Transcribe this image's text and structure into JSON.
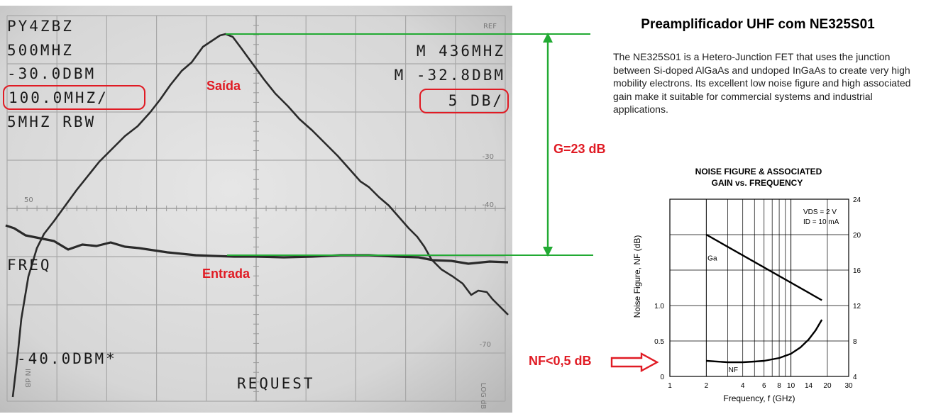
{
  "colors": {
    "accent_red": "#e01b24",
    "green_line": "#22aa33",
    "trace": "#2a2a2a",
    "screen_bg": "#dcdcdc"
  },
  "scope": {
    "callsign": "PY4ZBZ",
    "center_freq": "500MHZ",
    "ref_level": "-30.0DBM",
    "span": "100.0MHZ/",
    "rbw": "5MHZ RBW",
    "marker_freq": "M 436MHZ",
    "marker_level": "M -32.8DBM",
    "scale": "5 DB/",
    "freq_label": "FREQ",
    "bottom_level": "-40.0DBM*",
    "request": "REQUEST",
    "ref_tag": "REF",
    "scale_right": [
      "-30",
      "-40",
      "-70"
    ],
    "scale_left": "50",
    "log_tag": "LOG dB",
    "side_tag": "IN dB"
  },
  "annotations": {
    "output_label": "Saída",
    "input_label": "Entrada",
    "gain_label": "G=23 dB",
    "nf_label": "NF<0,5 dB"
  },
  "header": {
    "title": "Preamplificador UHF com NE325S01",
    "description": "The NE325S01 is a Hetero-Junction FET that uses the junction between Si-doped AlGaAs and undoped InGaAs to create very high mobility electrons. Its excellent low noise figure and high associated gain make it suitable for commercial systems and industrial applications."
  },
  "chart_data": {
    "type": "line",
    "title": "NOISE FIGURE & ASSOCIATED GAIN  vs. FREQUENCY",
    "title_line1": "NOISE FIGURE & ASSOCIATED",
    "title_line2": "GAIN  vs. FREQUENCY",
    "xlabel": "Frequency, f (GHz)",
    "ylabel": "Noise Figure, NF (dB)",
    "x_scale": "log",
    "xlim": [
      1,
      30
    ],
    "x_ticks": [
      "1",
      "2",
      "4",
      "6",
      "8",
      "10",
      "14",
      "20",
      "30"
    ],
    "y_left_ticks": [
      "0",
      "0.5",
      "1.0"
    ],
    "y_right_ticks": [
      "4",
      "8",
      "12",
      "16",
      "20",
      "24"
    ],
    "conditions": [
      "VDS = 2 V",
      "ID = 10 mA"
    ],
    "series": [
      {
        "name": "Ga",
        "axis": "right",
        "x": [
          2,
          18
        ],
        "y": [
          20,
          12.6
        ]
      },
      {
        "name": "NF",
        "axis": "left",
        "x": [
          2,
          3,
          4,
          5,
          6,
          8,
          10,
          12,
          14,
          16,
          18
        ],
        "y": [
          0.22,
          0.2,
          0.2,
          0.21,
          0.22,
          0.26,
          0.32,
          0.41,
          0.52,
          0.65,
          0.8
        ]
      }
    ]
  }
}
